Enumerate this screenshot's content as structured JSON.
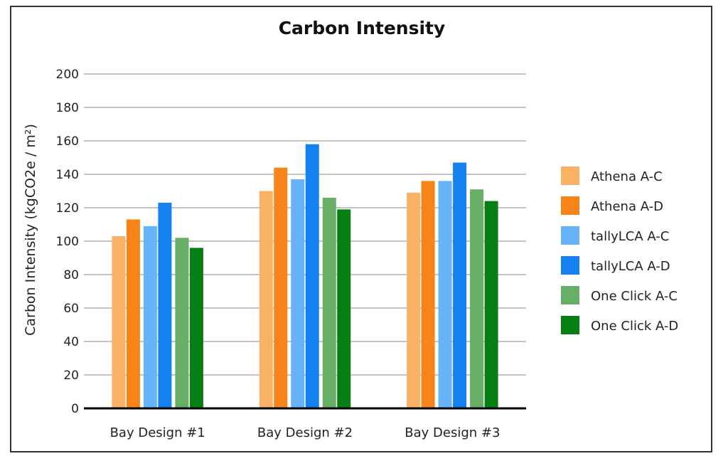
{
  "chart_data": {
    "type": "bar",
    "title": "Carbon Intensity",
    "xlabel": "",
    "ylabel": "Carbon Intensity   (kgCO2e / m²)",
    "ylim": [
      0,
      200
    ],
    "yticks": [
      0,
      20,
      40,
      60,
      80,
      100,
      120,
      140,
      160,
      180,
      200
    ],
    "grid": true,
    "legend_position": "right",
    "categories": [
      "Bay Design #1",
      "Bay Design #2",
      "Bay Design #3"
    ],
    "series": [
      {
        "name": "Athena A-C",
        "color": "#F9B265",
        "values": [
          103,
          130,
          129
        ]
      },
      {
        "name": "Athena A-D",
        "color": "#F68419",
        "values": [
          113,
          144,
          136
        ]
      },
      {
        "name": "tallyLCA A-C",
        "color": "#66B3FA",
        "values": [
          109,
          137,
          136
        ]
      },
      {
        "name": "tallyLCA A-D",
        "color": "#1580EF",
        "values": [
          123,
          158,
          147
        ]
      },
      {
        "name": "One Click A-C",
        "color": "#67AE67",
        "values": [
          102,
          126,
          131
        ]
      },
      {
        "name": "One Click A-D",
        "color": "#067F12",
        "values": [
          96,
          119,
          124
        ]
      }
    ]
  }
}
